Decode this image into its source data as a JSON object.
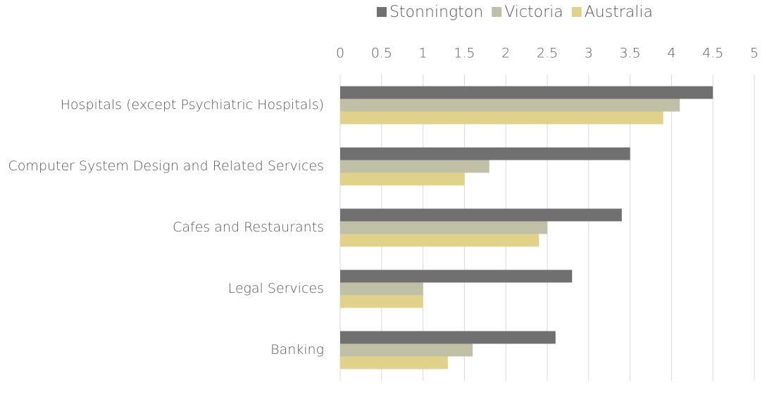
{
  "chart_data": {
    "type": "hbar",
    "categories": [
      "Hospitals (except Psychiatric Hospitals)",
      "Computer System Design and Related Services",
      "Cafes and Restaurants",
      "Legal Services",
      "Banking"
    ],
    "series": [
      {
        "name": "Stonnington",
        "color": "#707070",
        "values": [
          4.5,
          3.5,
          3.4,
          2.8,
          2.6
        ]
      },
      {
        "name": "Victoria",
        "color": "#c0c0a6",
        "values": [
          4.1,
          1.8,
          2.5,
          1.0,
          1.6
        ]
      },
      {
        "name": "Australia",
        "color": "#e0d28a",
        "values": [
          3.9,
          1.5,
          2.4,
          1.0,
          1.3
        ]
      }
    ],
    "xlim": [
      0,
      5
    ],
    "xticks": [
      0,
      0.5,
      1,
      1.5,
      2,
      2.5,
      3,
      3.5,
      4,
      4.5,
      5
    ],
    "grid": true,
    "legend": "top"
  }
}
